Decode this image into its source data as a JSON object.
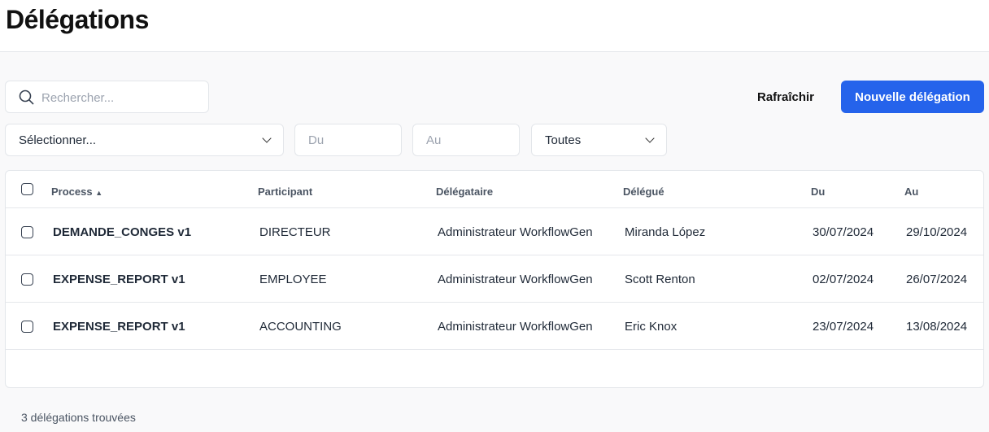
{
  "page": {
    "title": "Délégations"
  },
  "toolbar": {
    "search_placeholder": "Rechercher...",
    "refresh_label": "Rafraîchir",
    "new_label": "Nouvelle délégation"
  },
  "filters": {
    "process_select": "Sélectionner...",
    "from_placeholder": "Du",
    "to_placeholder": "Au",
    "status_select": "Toutes"
  },
  "table": {
    "headers": {
      "process": "Process",
      "participant": "Participant",
      "delegataire": "Délégataire",
      "delegue": "Délégué",
      "du": "Du",
      "au": "Au"
    },
    "sort": "process ascending",
    "rows": [
      {
        "process": "DEMANDE_CONGES v1",
        "participant": "DIRECTEUR",
        "delegataire": "Administrateur WorkflowGen",
        "delegue": "Miranda López",
        "du": "30/07/2024",
        "au": "29/10/2024"
      },
      {
        "process": "EXPENSE_REPORT v1",
        "participant": "EMPLOYEE",
        "delegataire": "Administrateur WorkflowGen",
        "delegue": "Scott Renton",
        "du": "02/07/2024",
        "au": "26/07/2024"
      },
      {
        "process": "EXPENSE_REPORT v1",
        "participant": "ACCOUNTING",
        "delegataire": "Administrateur WorkflowGen",
        "delegue": "Eric Knox",
        "du": "23/07/2024",
        "au": "13/08/2024"
      }
    ]
  },
  "footer": {
    "count_text": "3 délégations trouvées"
  },
  "colors": {
    "primary": "#2563eb"
  }
}
